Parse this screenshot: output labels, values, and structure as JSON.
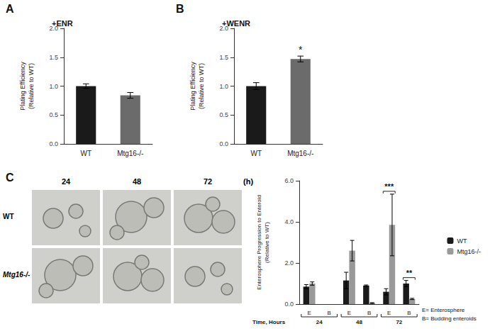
{
  "chart_data": [
    {
      "panel_label": "A",
      "type": "bar",
      "title": "+ENR",
      "categories": [
        "WT",
        "Mtg16-/-"
      ],
      "values": [
        1.0,
        0.84
      ],
      "errors": [
        0.04,
        0.05
      ],
      "colors": [
        "#1a1a1a",
        "#6b6b6b"
      ],
      "ylabel": "Plating Efficiency\n(Relative to WT)",
      "ylim": [
        0,
        2
      ],
      "yticks": [
        {
          "value": 0,
          "label": "0.0"
        },
        {
          "value": 0.5,
          "label": "0.5"
        },
        {
          "value": 1,
          "label": "1.0"
        },
        {
          "value": 1.5,
          "label": "1.5"
        },
        {
          "value": 2,
          "label": "2.0"
        }
      ]
    },
    {
      "panel_label": "B",
      "type": "bar",
      "title": "+WENR",
      "categories": [
        "WT",
        "Mtg16-/-"
      ],
      "values": [
        1.0,
        1.47
      ],
      "errors": [
        0.06,
        0.05
      ],
      "colors": [
        "#1a1a1a",
        "#6b6b6b"
      ],
      "ylabel": "Plating Efficiency\n(Relative to WT)",
      "ylim": [
        0,
        2
      ],
      "yticks": [
        {
          "value": 0,
          "label": "0.0"
        },
        {
          "value": 0.5,
          "label": "0.5"
        },
        {
          "value": 1,
          "label": "1.0"
        },
        {
          "value": 1.5,
          "label": "1.5"
        },
        {
          "value": 2,
          "label": "2.0"
        }
      ],
      "annotations": [
        {
          "text": "*",
          "category": "Mtg16-/-"
        }
      ]
    },
    {
      "panel_label": "C",
      "type": "bar",
      "categories": [
        "E",
        "B",
        "E",
        "B",
        "E",
        "B"
      ],
      "groups": [
        "24",
        "48",
        "72"
      ],
      "xlabel": "Time, Hours",
      "ylabel": "Enterosphere Progression to Enteroid\n(Relative to WT)",
      "series": [
        {
          "name": "WT",
          "color": "#1a1a1a",
          "values": [
            0.85,
            0,
            1.15,
            0.9,
            0.6,
            1.0
          ],
          "errors": [
            0.1,
            0,
            0.4,
            0.03,
            0.15,
            0.15
          ]
        },
        {
          "name": "Mtg16-/-",
          "color": "#999999",
          "values": [
            1.0,
            0,
            2.6,
            0.05,
            3.85,
            0.25
          ],
          "errors": [
            0.08,
            0,
            0.5,
            0.02,
            1.5,
            0.03
          ]
        }
      ],
      "legend": "top-right",
      "ylim": [
        0,
        6
      ],
      "yticks": [
        {
          "value": 0,
          "label": "0.0"
        },
        {
          "value": 2,
          "label": "2.0"
        },
        {
          "value": 4,
          "label": "4.0"
        },
        {
          "value": 6,
          "label": "6.0"
        }
      ],
      "annotations": [
        {
          "text": "***",
          "group": "72",
          "category": "E"
        },
        {
          "text": "**",
          "group": "72",
          "category": "B"
        }
      ],
      "notes": [
        "E= Enterosphere",
        "B= Budding enteroids"
      ]
    }
  ],
  "micrographs": {
    "columns": [
      "24",
      "48",
      "72"
    ],
    "unit": "(h)",
    "rows": [
      "WT",
      "Mtg16-/-"
    ]
  }
}
